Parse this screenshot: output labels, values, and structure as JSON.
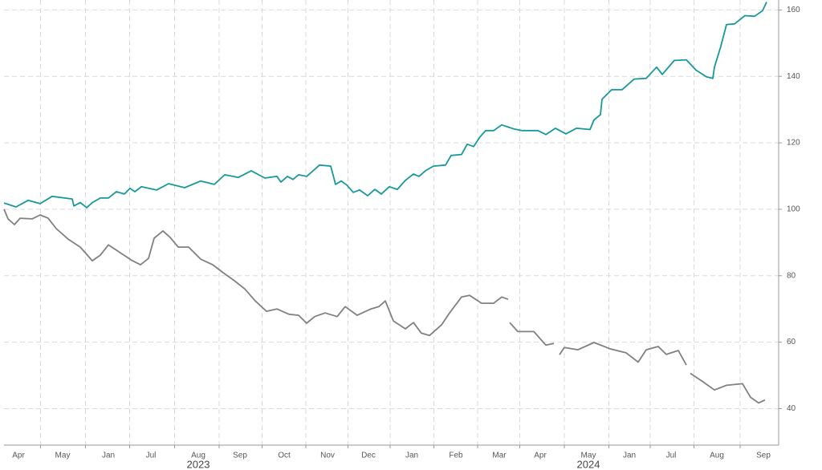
{
  "chart_data": {
    "type": "line",
    "xlim": [
      0.5,
      97.0
    ],
    "xticks": [
      {
        "value": 2.3,
        "label": "Apr"
      },
      {
        "value": 7.8,
        "label": "May"
      },
      {
        "value": 13.5,
        "label": "Jan"
      },
      {
        "value": 18.8,
        "label": "Jul"
      },
      {
        "value": 24.7,
        "label": "Aug"
      },
      {
        "value": 29.9,
        "label": "Sep"
      },
      {
        "value": 35.4,
        "label": "Oct"
      },
      {
        "value": 40.8,
        "label": "Nov"
      },
      {
        "value": 45.9,
        "label": "Dec"
      },
      {
        "value": 51.3,
        "label": "Jan"
      },
      {
        "value": 56.8,
        "label": "Feb"
      },
      {
        "value": 62.2,
        "label": "Mar"
      },
      {
        "value": 67.3,
        "label": "Apr"
      },
      {
        "value": 73.3,
        "label": "May"
      },
      {
        "value": 78.4,
        "label": "Jan"
      },
      {
        "value": 83.6,
        "label": "Jul"
      },
      {
        "value": 89.3,
        "label": "Aug"
      },
      {
        "value": 95.1,
        "label": "Sep"
      }
    ],
    "year_labels": [
      "2023",
      "2024"
    ],
    "ylim": [
      29,
      163
    ],
    "yticks": [
      40,
      60,
      80,
      100,
      120,
      140,
      160
    ],
    "grid": true,
    "series": [
      {
        "color": "#17999a",
        "x": [
          0.5,
          2.0,
          3.5,
          5.0,
          6.5,
          9.0,
          9.2,
          10.0,
          10.8,
          11.5,
          12.5,
          13.5,
          14.5,
          15.5,
          16.2,
          16.8,
          17.6,
          19.5,
          21.0,
          23.0,
          25.0,
          26.7,
          28.0,
          29.7,
          31.3,
          33.0,
          34.5,
          35.0,
          35.8,
          36.5,
          37.2,
          38.2,
          39.0,
          39.8,
          41.2,
          41.8,
          42.5,
          43.2,
          44.0,
          44.8,
          45.8,
          46.7,
          47.5,
          48.5,
          49.5,
          50.5,
          51.5,
          52.2,
          53.0,
          54.0,
          55.5,
          56.2,
          57.5,
          58.2,
          59.0,
          59.8,
          60.5,
          61.5,
          62.5,
          64.0,
          65.0,
          66.0,
          67.0,
          68.0,
          69.2,
          70.5,
          71.8,
          73.5,
          74.0,
          74.8,
          75.0,
          76.2,
          77.5,
          79.0,
          80.5,
          81.8,
          82.5,
          84.0,
          85.5,
          86.7,
          88.0,
          88.8,
          89.0,
          89.8,
          90.5,
          91.5,
          92.8,
          94.0,
          95.0,
          95.5
        ],
        "values": [
          101.9,
          100.7,
          102.7,
          101.7,
          103.9,
          103.1,
          101.0,
          102.0,
          100.5,
          102.0,
          103.4,
          103.4,
          105.3,
          104.6,
          106.3,
          105.3,
          106.8,
          105.8,
          107.7,
          106.5,
          108.5,
          107.5,
          110.4,
          109.6,
          111.6,
          109.4,
          109.9,
          108.2,
          109.9,
          109.0,
          110.4,
          109.9,
          111.6,
          113.3,
          113.0,
          107.5,
          108.5,
          107.3,
          105.1,
          105.8,
          104.1,
          106.0,
          104.6,
          106.8,
          106.0,
          108.7,
          110.6,
          109.9,
          111.6,
          113.0,
          113.3,
          116.2,
          116.5,
          119.6,
          118.9,
          121.8,
          123.7,
          123.7,
          125.4,
          124.2,
          123.7,
          123.7,
          123.7,
          122.5,
          124.4,
          122.7,
          124.4,
          124.0,
          126.9,
          128.5,
          133.1,
          136.0,
          136.0,
          139.2,
          139.4,
          142.8,
          140.6,
          144.8,
          145.0,
          141.9,
          139.9,
          139.4,
          142.8,
          149.1,
          155.6,
          155.8,
          158.3,
          158.1,
          159.8,
          162.4
        ]
      },
      {
        "color": "#808080",
        "x": [
          0.5,
          1.0,
          1.8,
          2.5,
          4.0,
          5.0,
          6.0,
          7.0,
          8.5,
          10.0,
          11.5,
          12.5,
          13.5,
          15.0,
          16.5,
          17.5,
          18.5,
          19.2,
          20.3,
          21.2,
          22.2,
          23.5,
          25.0,
          26.5,
          27.8,
          29.2,
          30.5,
          31.8,
          33.2,
          34.5,
          36.0,
          37.2,
          38.2,
          39.2,
          40.5,
          42.0,
          43.0,
          44.5,
          46.2,
          47.2,
          48.0,
          49.0,
          50.5,
          51.5,
          52.5,
          53.5,
          55.0,
          56.0,
          57.5,
          58.5,
          60.0,
          61.5,
          62.5,
          63.3,
          63.4,
          63.5,
          64.5,
          66.5,
          68.0,
          69.0,
          69.35,
          69.7,
          70.3,
          72.0,
          74.0,
          76.0,
          78.0,
          79.5,
          80.5,
          82.0,
          83.0,
          84.5,
          85.5,
          85.75,
          86.0,
          87.5,
          89.0,
          90.5,
          92.5,
          93.5,
          94.5,
          95.3
        ],
        "values": [
          100.0,
          97.1,
          95.4,
          97.3,
          97.1,
          98.3,
          97.3,
          94.2,
          91.0,
          88.6,
          84.5,
          86.2,
          89.3,
          86.9,
          84.5,
          83.3,
          85.2,
          91.3,
          93.5,
          91.5,
          88.6,
          88.6,
          85.0,
          83.3,
          80.9,
          78.5,
          76.0,
          72.4,
          69.3,
          70.0,
          68.4,
          68.1,
          65.7,
          67.7,
          68.8,
          67.7,
          70.7,
          68.1,
          70.0,
          70.7,
          72.4,
          66.4,
          64.0,
          65.9,
          62.7,
          62.0,
          65.2,
          68.8,
          73.6,
          74.1,
          71.7,
          71.7,
          73.6,
          72.9,
          null,
          65.9,
          63.2,
          63.2,
          59.1,
          59.6,
          null,
          56.2,
          58.4,
          57.7,
          59.9,
          58.0,
          56.8,
          54.0,
          57.7,
          58.7,
          56.3,
          57.5,
          53.1,
          null,
          50.6,
          48.2,
          45.6,
          47.0,
          47.5,
          43.4,
          41.7,
          42.6
        ]
      }
    ]
  }
}
